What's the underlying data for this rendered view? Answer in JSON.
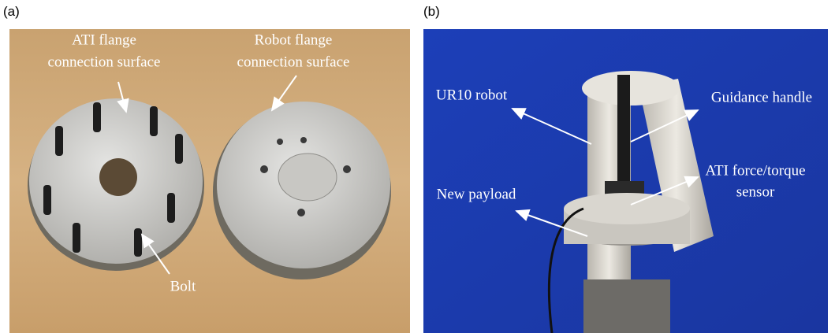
{
  "panels": [
    {
      "label": "(a)",
      "annotations": [
        {
          "lines": [
            "ATI flange",
            "connection surface"
          ]
        },
        {
          "lines": [
            "Robot flange",
            "connection surface"
          ]
        },
        {
          "lines": [
            "Bolt"
          ]
        }
      ]
    },
    {
      "label": "(b)",
      "annotations": [
        {
          "lines": [
            "UR10 robot"
          ]
        },
        {
          "lines": [
            "Guidance handle"
          ]
        },
        {
          "lines": [
            "ATI force/torque",
            "sensor"
          ]
        },
        {
          "lines": [
            "New payload"
          ]
        }
      ]
    }
  ]
}
